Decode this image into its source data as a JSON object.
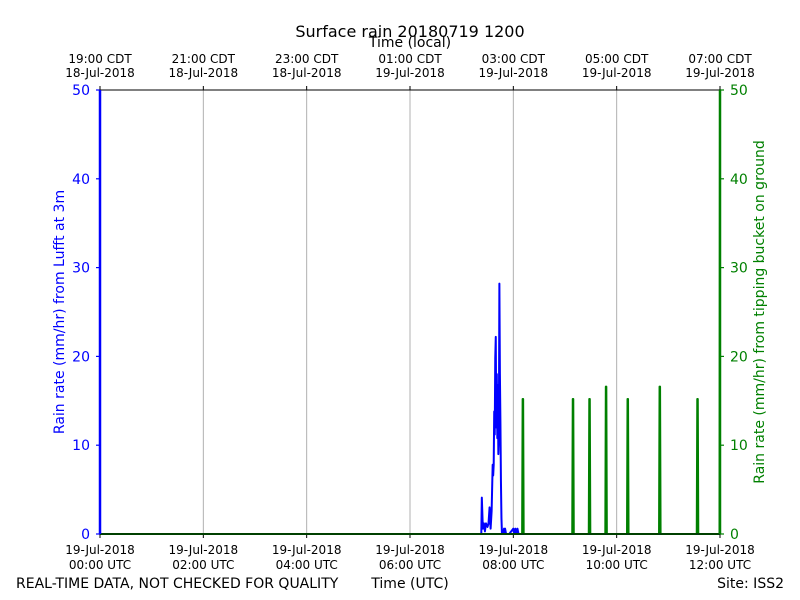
{
  "chart_data": {
    "type": "line",
    "title": "Surface rain 20180719 1200",
    "top_axis_label": "Time (local)",
    "xlabel": "Time (UTC)",
    "ylabel_left": "Rain rate (mm/hr) from Lufft at 3m",
    "ylabel_right": "Rain rate (mm/hr) from tipping bucket on ground",
    "footer_left": "REAL-TIME DATA, NOT CHECKED FOR QUALITY",
    "footer_right": "Site: ISS2",
    "xlim_hours_utc": [
      0,
      12
    ],
    "ylim": [
      0,
      50
    ],
    "grid_x": true,
    "bottom_ticks": [
      {
        "hour": 0,
        "line1": "19-Jul-2018",
        "line2": "00:00 UTC"
      },
      {
        "hour": 2,
        "line1": "19-Jul-2018",
        "line2": "02:00 UTC"
      },
      {
        "hour": 4,
        "line1": "19-Jul-2018",
        "line2": "04:00 UTC"
      },
      {
        "hour": 6,
        "line1": "19-Jul-2018",
        "line2": "06:00 UTC"
      },
      {
        "hour": 8,
        "line1": "19-Jul-2018",
        "line2": "08:00 UTC"
      },
      {
        "hour": 10,
        "line1": "19-Jul-2018",
        "line2": "10:00 UTC"
      },
      {
        "hour": 12,
        "line1": "19-Jul-2018",
        "line2": "12:00 UTC"
      }
    ],
    "top_ticks": [
      {
        "hour": 0,
        "line1": "19:00 CDT",
        "line2": "18-Jul-2018"
      },
      {
        "hour": 2,
        "line1": "21:00 CDT",
        "line2": "18-Jul-2018"
      },
      {
        "hour": 4,
        "line1": "23:00 CDT",
        "line2": "18-Jul-2018"
      },
      {
        "hour": 6,
        "line1": "01:00 CDT",
        "line2": "19-Jul-2018"
      },
      {
        "hour": 8,
        "line1": "03:00 CDT",
        "line2": "19-Jul-2018"
      },
      {
        "hour": 10,
        "line1": "05:00 CDT",
        "line2": "19-Jul-2018"
      },
      {
        "hour": 12,
        "line1": "07:00 CDT",
        "line2": "19-Jul-2018"
      }
    ],
    "y_ticks": [
      0,
      10,
      20,
      30,
      40,
      50
    ],
    "series": [
      {
        "axis": "left",
        "color": "#0000ff",
        "x": [
          0,
          0,
          0.01,
          7.38,
          7.39,
          7.41,
          7.43,
          7.45,
          7.47,
          7.5,
          7.52,
          7.54,
          7.56,
          7.58,
          7.6,
          7.61,
          7.62,
          7.63,
          7.64,
          7.65,
          7.66,
          7.67,
          7.68,
          7.69,
          7.7,
          7.71,
          7.72,
          7.73,
          7.74,
          7.75,
          7.76,
          7.77,
          7.78,
          7.8,
          7.82,
          7.83,
          7.84,
          7.86,
          7.88,
          7.9,
          7.92,
          8.0,
          8.02,
          8.04,
          8.06,
          8.08,
          8.1,
          12
        ],
        "y": [
          50,
          0,
          0,
          0,
          4.1,
          0.6,
          1.2,
          0.3,
          1.2,
          0.8,
          1.2,
          3.0,
          0.6,
          2.6,
          7.8,
          6.6,
          7.8,
          13.8,
          11.2,
          19.8,
          22.2,
          12.0,
          18.0,
          10.8,
          16.8,
          9.0,
          11.0,
          28.2,
          18.0,
          12.6,
          6.0,
          1.8,
          0.0,
          0.0,
          0.6,
          0.0,
          0.6,
          0.0,
          0.0,
          0.0,
          0.0,
          0.6,
          0.0,
          0.6,
          0.0,
          0.6,
          0.0,
          0
        ]
      },
      {
        "axis": "right",
        "color": "#008000",
        "x": [
          0,
          8.17,
          8.18,
          8.19,
          8.2,
          9.14,
          9.15,
          9.16,
          9.17,
          9.46,
          9.47,
          9.48,
          9.49,
          9.78,
          9.79,
          9.8,
          9.81,
          10.2,
          10.21,
          10.22,
          10.23,
          10.82,
          10.83,
          10.84,
          10.85,
          11.55,
          11.56,
          11.57,
          11.58,
          11.99,
          12,
          12
        ],
        "y": [
          0,
          0,
          15.2,
          15.2,
          0,
          0,
          15.2,
          15.2,
          0,
          0,
          15.2,
          15.2,
          0,
          0,
          16.6,
          16.6,
          0,
          0,
          15.2,
          15.2,
          0,
          0,
          16.6,
          16.6,
          0,
          0,
          15.2,
          15.2,
          0,
          0,
          50,
          0
        ]
      }
    ]
  }
}
